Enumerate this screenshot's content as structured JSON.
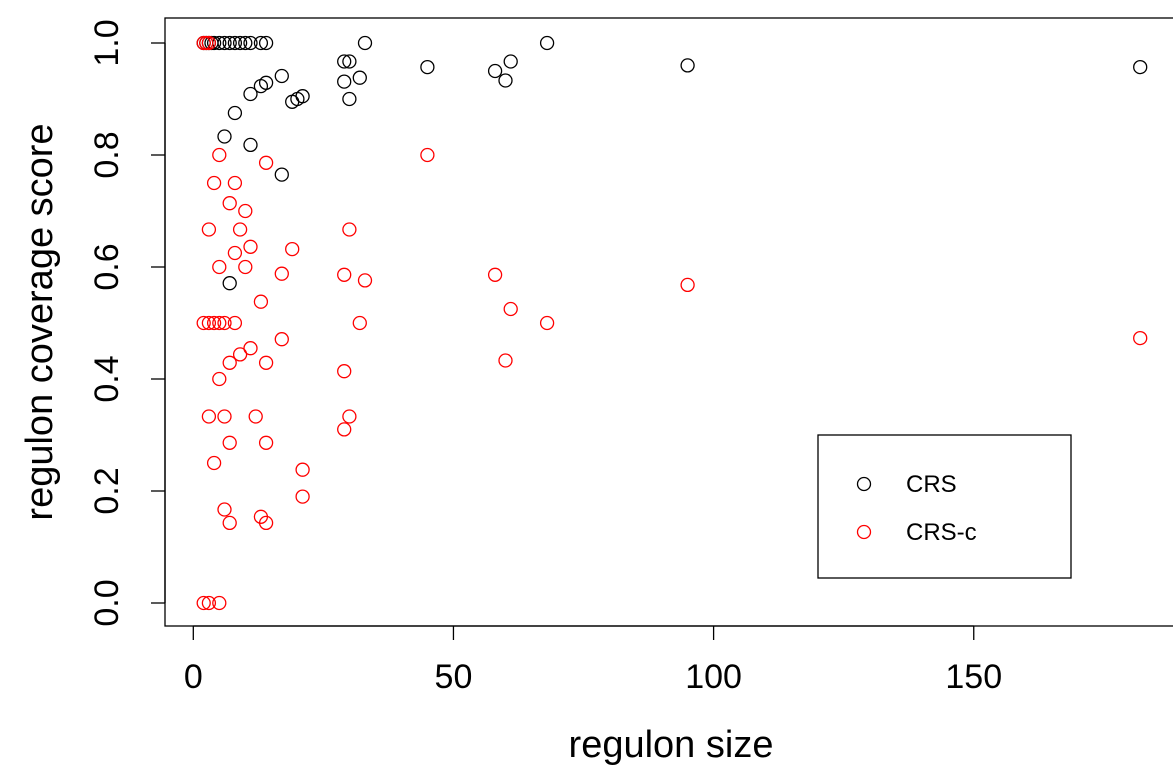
{
  "chart_data": {
    "type": "scatter",
    "title": "",
    "xlabel": "regulon size",
    "ylabel": "regulon coverage score",
    "xlim": [
      -4,
      188
    ],
    "ylim": [
      -0.04,
      1.04
    ],
    "xticks": [
      0,
      50,
      100,
      150
    ],
    "xtick_labels": [
      "0",
      "50",
      "100",
      "150"
    ],
    "yticks": [
      0.0,
      0.2,
      0.4,
      0.6,
      0.8,
      1.0
    ],
    "ytick_labels": [
      "0.0",
      "0.2",
      "0.4",
      "0.6",
      "0.8",
      "1.0"
    ],
    "grid": false,
    "legend_position": "bottom-right",
    "series": [
      {
        "name": "CRS",
        "color": "#000000",
        "marker": "open-circle",
        "points": [
          [
            2,
            1.0
          ],
          [
            2.5,
            1.0
          ],
          [
            3,
            1.0
          ],
          [
            3.5,
            1.0
          ],
          [
            4,
            1.0
          ],
          [
            5,
            1.0
          ],
          [
            6,
            1.0
          ],
          [
            7,
            1.0
          ],
          [
            8,
            1.0
          ],
          [
            9,
            1.0
          ],
          [
            10,
            1.0
          ],
          [
            11,
            1.0
          ],
          [
            13,
            1.0
          ],
          [
            14,
            1.0
          ],
          [
            33,
            1.0
          ],
          [
            68,
            1.0
          ],
          [
            29,
            0.967
          ],
          [
            30,
            0.967
          ],
          [
            61,
            0.967
          ],
          [
            182,
            0.957
          ],
          [
            95,
            0.96
          ],
          [
            45,
            0.957
          ],
          [
            58,
            0.95
          ],
          [
            60,
            0.933
          ],
          [
            32,
            0.938
          ],
          [
            29,
            0.931
          ],
          [
            17,
            0.941
          ],
          [
            14,
            0.929
          ],
          [
            13,
            0.923
          ],
          [
            11,
            0.909
          ],
          [
            21,
            0.905
          ],
          [
            20,
            0.9
          ],
          [
            19,
            0.895
          ],
          [
            30,
            0.9
          ],
          [
            8,
            0.875
          ],
          [
            6,
            0.833
          ],
          [
            11,
            0.818
          ],
          [
            17,
            0.765
          ],
          [
            7,
            0.571
          ]
        ]
      },
      {
        "name": "CRS-c",
        "color": "#ff0000",
        "marker": "open-circle",
        "points": [
          [
            2,
            1.0
          ],
          [
            2.5,
            1.0
          ],
          [
            3,
            1.0
          ],
          [
            45,
            0.8
          ],
          [
            5,
            0.8
          ],
          [
            14,
            0.786
          ],
          [
            4,
            0.75
          ],
          [
            8,
            0.75
          ],
          [
            7,
            0.714
          ],
          [
            10,
            0.7
          ],
          [
            3,
            0.667
          ],
          [
            9,
            0.667
          ],
          [
            30,
            0.667
          ],
          [
            11,
            0.636
          ],
          [
            19,
            0.632
          ],
          [
            8,
            0.625
          ],
          [
            5,
            0.6
          ],
          [
            10,
            0.6
          ],
          [
            17,
            0.588
          ],
          [
            29,
            0.586
          ],
          [
            58,
            0.586
          ],
          [
            33,
            0.576
          ],
          [
            95,
            0.568
          ],
          [
            13,
            0.538
          ],
          [
            61,
            0.525
          ],
          [
            2,
            0.5
          ],
          [
            3,
            0.5
          ],
          [
            4,
            0.5
          ],
          [
            5,
            0.5
          ],
          [
            6,
            0.5
          ],
          [
            8,
            0.5
          ],
          [
            32,
            0.5
          ],
          [
            68,
            0.5
          ],
          [
            182,
            0.473
          ],
          [
            17,
            0.471
          ],
          [
            11,
            0.455
          ],
          [
            9,
            0.444
          ],
          [
            60,
            0.433
          ],
          [
            14,
            0.429
          ],
          [
            7,
            0.429
          ],
          [
            29,
            0.414
          ],
          [
            5,
            0.4
          ],
          [
            3,
            0.333
          ],
          [
            6,
            0.333
          ],
          [
            12,
            0.333
          ],
          [
            30,
            0.333
          ],
          [
            29,
            0.31
          ],
          [
            7,
            0.286
          ],
          [
            14,
            0.286
          ],
          [
            4,
            0.25
          ],
          [
            21,
            0.238
          ],
          [
            21,
            0.19
          ],
          [
            6,
            0.167
          ],
          [
            13,
            0.154
          ],
          [
            7,
            0.143
          ],
          [
            14,
            0.143
          ],
          [
            2,
            0.0
          ],
          [
            3,
            0.0
          ],
          [
            5,
            0.0
          ]
        ]
      }
    ]
  }
}
